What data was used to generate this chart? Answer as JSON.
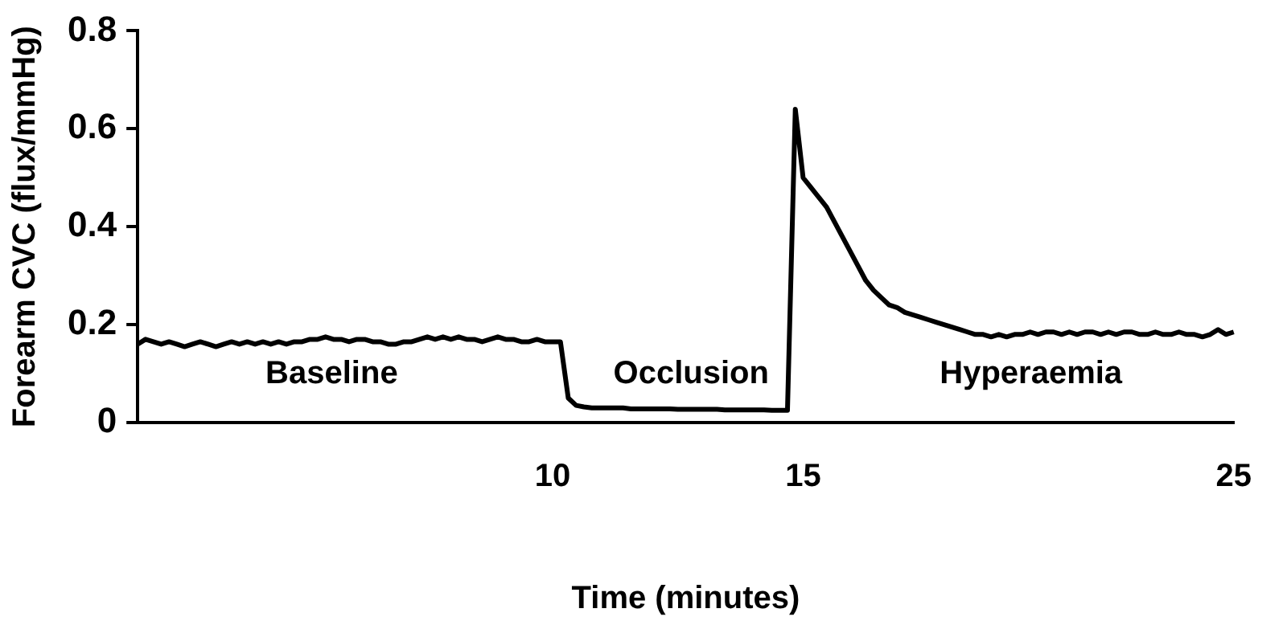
{
  "chart_data": {
    "type": "line",
    "xlabel": "Time (minutes)",
    "ylabel": "Forearm CVC (flux/mmHg)",
    "categories": [
      null,
      null,
      null,
      null,
      null,
      null,
      null,
      null,
      null,
      null,
      null,
      null,
      null,
      null,
      null,
      null,
      null,
      null,
      null,
      null,
      null,
      null,
      null,
      null,
      null,
      null,
      null,
      null,
      null,
      null,
      null,
      null,
      null,
      null,
      null,
      null,
      null,
      null,
      null,
      null,
      null,
      null,
      null,
      null,
      null,
      null,
      null,
      null,
      null,
      null,
      null,
      null,
      null,
      "10",
      null,
      null,
      null,
      null,
      null,
      null,
      null,
      null,
      null,
      null,
      null,
      null,
      null,
      null,
      null,
      null,
      null,
      null,
      null,
      null,
      null,
      null,
      null,
      null,
      null,
      null,
      null,
      null,
      null,
      null,
      null,
      "15",
      null,
      null,
      null,
      null,
      null,
      null,
      null,
      null,
      null,
      null,
      null,
      null,
      null,
      null,
      null,
      null,
      null,
      null,
      null,
      null,
      null,
      null,
      null,
      null,
      null,
      null,
      null,
      null,
      null,
      null,
      null,
      null,
      null,
      null,
      null,
      null,
      null,
      null,
      null,
      null,
      null,
      null,
      null,
      null,
      null,
      null,
      null,
      null,
      null,
      null,
      null,
      null,
      null,
      null,
      "25"
    ],
    "series": [
      {
        "color": "#000000",
        "values": [
          0.16,
          0.17,
          0.165,
          0.16,
          0.165,
          0.16,
          0.155,
          0.16,
          0.165,
          0.16,
          0.155,
          0.16,
          0.165,
          0.16,
          0.165,
          0.16,
          0.165,
          0.16,
          0.165,
          0.16,
          0.165,
          0.165,
          0.17,
          0.17,
          0.175,
          0.17,
          0.17,
          0.165,
          0.17,
          0.17,
          0.165,
          0.165,
          0.16,
          0.16,
          0.165,
          0.165,
          0.17,
          0.175,
          0.17,
          0.175,
          0.17,
          0.175,
          0.17,
          0.17,
          0.165,
          0.17,
          0.175,
          0.17,
          0.17,
          0.165,
          0.165,
          0.17,
          0.165,
          0.165,
          0.165,
          0.05,
          0.035,
          0.032,
          0.03,
          0.03,
          0.03,
          0.03,
          0.03,
          0.028,
          0.028,
          0.028,
          0.028,
          0.028,
          0.028,
          0.027,
          0.027,
          0.027,
          0.027,
          0.027,
          0.027,
          0.026,
          0.026,
          0.026,
          0.026,
          0.026,
          0.026,
          0.025,
          0.025,
          0.025,
          0.64,
          0.5,
          0.48,
          0.46,
          0.44,
          0.41,
          0.38,
          0.35,
          0.32,
          0.29,
          0.27,
          0.255,
          0.24,
          0.235,
          0.225,
          0.22,
          0.215,
          0.21,
          0.205,
          0.2,
          0.195,
          0.19,
          0.185,
          0.18,
          0.18,
          0.175,
          0.18,
          0.175,
          0.18,
          0.18,
          0.185,
          0.18,
          0.185,
          0.185,
          0.18,
          0.185,
          0.18,
          0.185,
          0.185,
          0.18,
          0.185,
          0.18,
          0.185,
          0.185,
          0.18,
          0.18,
          0.185,
          0.18,
          0.18,
          0.185,
          0.18,
          0.18,
          0.175,
          0.18,
          0.19,
          0.18,
          0.185
        ]
      }
    ],
    "ylim": [
      0,
      0.8
    ],
    "yticks": [
      0,
      0.2,
      0.4,
      0.6,
      0.8
    ],
    "grid": false,
    "legend": false,
    "marker": "none",
    "line_style": "solid",
    "annotations": [
      "Baseline",
      "Occlusion",
      "Hyperaemia"
    ]
  }
}
